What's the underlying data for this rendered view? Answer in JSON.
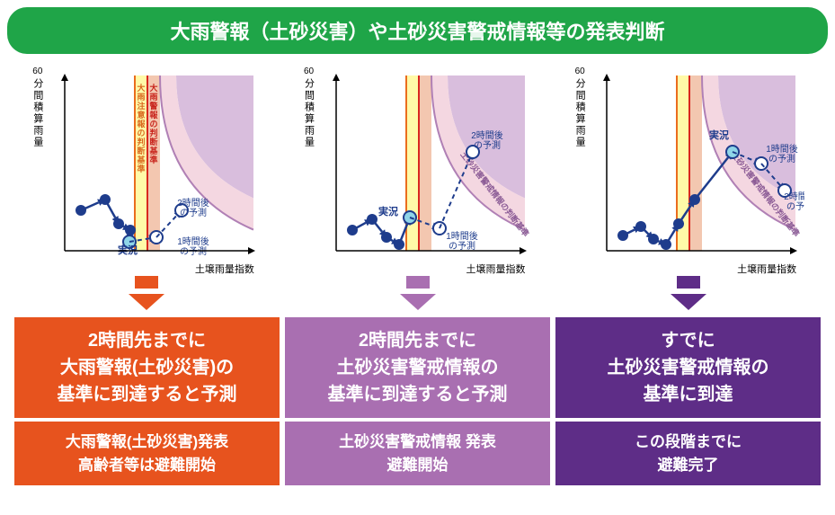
{
  "title": "大雨警報（土砂災害）や土砂災害警戒情報等の発表判断",
  "y_axis_top": "60",
  "y_axis_label": "分間積算雨量",
  "x_axis_label": "土壌雨量指数",
  "colors": {
    "title_bg": "#1fa548",
    "orange": "#e7531e",
    "medium_purple": "#a96fb1",
    "dark_purple": "#5e2d87",
    "yellow_band": "#fffaa8",
    "orange_band": "#f3c7b0",
    "pink_region": "#f4d7e1",
    "purple_region": "#d9bedd",
    "dark_blue": "#1e3c8c",
    "light_blue": "#8fd5e8",
    "orange_line": "#ea6d1e",
    "red_line": "#d9271f",
    "grey_text": "#333"
  },
  "band_labels": {
    "advisory": "大雨注意報の判断基準",
    "warning": "大雨警報の判断基準",
    "alert": "土砂災害警戒情報の判断基準"
  },
  "point_labels": {
    "current": "実況",
    "h1": "1時間後の予測",
    "h2": "2時間後の予測"
  },
  "charts": [
    {
      "past": [
        [
          18,
          160
        ],
        [
          45,
          148
        ],
        [
          60,
          175
        ],
        [
          73,
          182
        ]
      ],
      "current": [
        72,
        195
      ],
      "h1": [
        102,
        190
      ],
      "h2": [
        130,
        160
      ],
      "showBandLabels": true,
      "showAlertLabel": false,
      "curLabelPos": [
        70,
        208
      ],
      "h1LabelPos": [
        143,
        198
      ],
      "h2LabelPos": [
        143,
        155
      ],
      "arrow_color": "#e7531e"
    },
    {
      "past": [
        [
          18,
          182
        ],
        [
          40,
          170
        ],
        [
          56,
          190
        ],
        [
          70,
          198
        ]
      ],
      "current": [
        82,
        168
      ],
      "h1": [
        115,
        180
      ],
      "h2": [
        152,
        95
      ],
      "showBandLabels": false,
      "showAlertLabel": true,
      "curLabelPos": [
        58,
        165
      ],
      "h1LabelPos": [
        140,
        192
      ],
      "h2LabelPos": [
        168,
        80
      ],
      "arrow_color": "#a96fb1"
    },
    {
      "past": [
        [
          18,
          188
        ],
        [
          38,
          178
        ],
        [
          52,
          192
        ],
        [
          66,
          198
        ]
      ],
      "current": [
        140,
        95
      ],
      "h1": [
        172,
        108
      ],
      "h2": [
        198,
        138
      ],
      "showBandLabels": false,
      "showAlertLabel": true,
      "curLabelPos": [
        125,
        80
      ],
      "h1LabelPos": [
        195,
        95
      ],
      "h2LabelPos": [
        215,
        148
      ],
      "past_extra": [
        [
          80,
          175
        ],
        [
          98,
          148
        ]
      ],
      "arrow_color": "#5e2d87"
    }
  ],
  "results": [
    {
      "main": [
        "2時間先までに",
        "大雨警報(土砂災害)の",
        "基準に到達すると予測"
      ],
      "sub": [
        "大雨警報(土砂災害)発表",
        "高齢者等は避難開始"
      ],
      "color": "#e7531e"
    },
    {
      "main": [
        "2時間先までに",
        "土砂災害警戒情報の",
        "基準に到達すると予測"
      ],
      "sub": [
        "土砂災害警戒情報 発表",
        "避難開始"
      ],
      "color": "#a96fb1"
    },
    {
      "main": [
        "すでに",
        "土砂災害警戒情報の",
        "基準に到達"
      ],
      "sub": [
        "この段階までに",
        "避難完了"
      ],
      "color": "#5e2d87"
    }
  ]
}
